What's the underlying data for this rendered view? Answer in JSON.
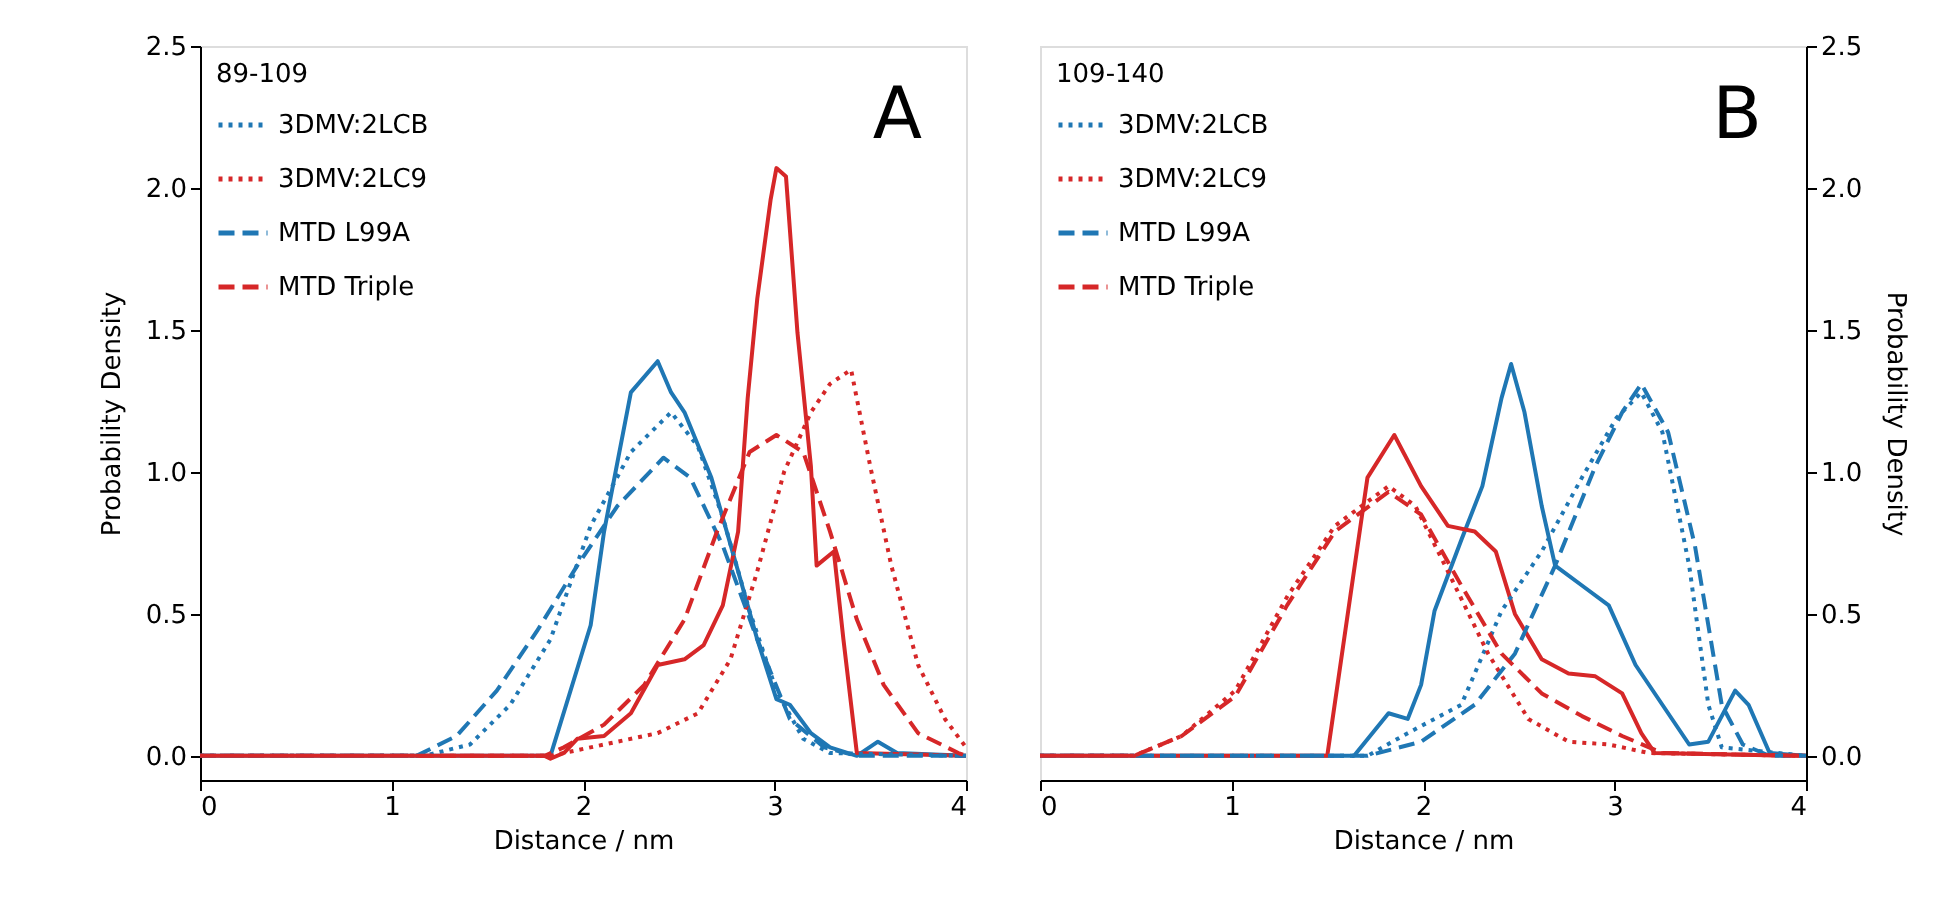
{
  "chart_data": [
    {
      "type": "line",
      "xlabel": "Distance  /  nm",
      "ylabel": "Probability Density",
      "legend_title": "89-109",
      "legend": "top left",
      "grid": false,
      "annotations": [
        "A"
      ],
      "xlim": [
        0,
        4
      ],
      "xticks": [
        0,
        1,
        2,
        3,
        4
      ],
      "ylim": [
        -0.085,
        2.5
      ],
      "yticks": [
        {
          "value": 0,
          "label": "0.0"
        },
        0.5,
        {
          "value": 1,
          "label": "1.0"
        },
        1.5,
        {
          "value": 2,
          "label": "2.0"
        },
        2.5
      ],
      "series": [
        {
          "name": "3DMV:2LCB",
          "color": "#1f77b4",
          "line_style": "dotted",
          "x": [
            0,
            1.17,
            1.41,
            1.62,
            1.83,
            2.04,
            2.25,
            2.46,
            2.6,
            2.73,
            2.87,
            3.01,
            3.15,
            3.29,
            4.0
          ],
          "values": [
            0,
            0,
            0.04,
            0.18,
            0.41,
            0.81,
            1.07,
            1.21,
            1.09,
            0.84,
            0.51,
            0.23,
            0.06,
            0.01,
            0
          ]
        },
        {
          "name": "3DMV:2LC9",
          "color": "#d62728",
          "line_style": "dotted",
          "x": [
            0,
            1.83,
            2.11,
            2.39,
            2.6,
            2.77,
            2.91,
            3.05,
            3.19,
            3.29,
            3.4,
            3.5,
            3.61,
            3.75,
            3.89,
            4.0
          ],
          "values": [
            0,
            0,
            0.04,
            0.08,
            0.15,
            0.34,
            0.65,
            1.0,
            1.21,
            1.31,
            1.36,
            1.02,
            0.67,
            0.32,
            0.13,
            0.03
          ]
        },
        {
          "name": "MTD L99A",
          "color": "#1f77b4",
          "line_style": "dashed",
          "x": [
            0,
            1.13,
            1.34,
            1.55,
            1.76,
            1.97,
            2.18,
            2.42,
            2.56,
            2.73,
            2.91,
            3.08,
            3.26,
            3.43,
            4.0
          ],
          "values": [
            0,
            0,
            0.07,
            0.23,
            0.44,
            0.67,
            0.88,
            1.05,
            0.98,
            0.74,
            0.41,
            0.13,
            0.03,
            0,
            0
          ]
        },
        {
          "name": "MTD Triple",
          "color": "#d62728",
          "line_style": "dashed",
          "x": [
            0,
            1.8,
            1.9,
            2.11,
            2.32,
            2.53,
            2.7,
            2.87,
            3.01,
            3.15,
            3.29,
            3.43,
            3.57,
            3.75,
            3.96,
            4.0
          ],
          "values": [
            0,
            0,
            0.03,
            0.11,
            0.25,
            0.48,
            0.79,
            1.07,
            1.13,
            1.07,
            0.79,
            0.48,
            0.25,
            0.08,
            0.01,
            0
          ]
        },
        {
          "color": "#1f77b4",
          "line_style": "solid",
          "x": [
            0,
            1.83,
            2.04,
            2.11,
            2.25,
            2.39,
            2.46,
            2.53,
            2.67,
            2.81,
            2.91,
            3.01,
            3.08,
            3.19,
            3.29,
            3.43,
            3.54,
            3.64,
            4.0
          ],
          "values": [
            0,
            0,
            0.46,
            0.79,
            1.28,
            1.39,
            1.28,
            1.21,
            0.98,
            0.65,
            0.41,
            0.2,
            0.18,
            0.08,
            0.03,
            0,
            0.05,
            0.01,
            0
          ]
        },
        {
          "color": "#d62728",
          "line_style": "solid",
          "x": [
            0,
            1.8,
            1.83,
            1.9,
            1.97,
            2.11,
            2.25,
            2.39,
            2.53,
            2.63,
            2.73,
            2.81,
            2.86,
            2.91,
            2.98,
            3.01,
            3.06,
            3.12,
            3.19,
            3.22,
            3.31,
            3.36,
            3.43,
            4.0
          ],
          "values": [
            0,
            0,
            -0.01,
            0.01,
            0.06,
            0.07,
            0.15,
            0.32,
            0.34,
            0.39,
            0.53,
            0.79,
            1.26,
            1.61,
            1.96,
            2.07,
            2.04,
            1.49,
            1.02,
            0.67,
            0.72,
            0.41,
            0.01,
            0
          ]
        }
      ]
    },
    {
      "type": "line",
      "xlabel": "Distance  /  nm",
      "y2label": "Probability Density",
      "legend_title": "109-140",
      "legend": "top left",
      "grid": false,
      "annotations": [
        "B"
      ],
      "xlim": [
        0,
        4
      ],
      "xticks": [
        0,
        1,
        2,
        3,
        4
      ],
      "y2lim": [
        -0.085,
        2.5
      ],
      "y2ticks": [
        {
          "value": 0,
          "label": "0.0"
        },
        0.5,
        {
          "value": 1,
          "label": "1.0"
        },
        1.5,
        {
          "value": 2,
          "label": "2.0"
        },
        2.5
      ],
      "series": [
        {
          "name": "3DMV:2LCB",
          "color": "#1f77b4",
          "line_style": "dotted",
          "axis": "y2",
          "x": [
            0,
            1.71,
            1.92,
            2.2,
            2.41,
            2.62,
            2.83,
            3.01,
            3.14,
            3.25,
            3.39,
            3.49,
            3.56,
            4.0
          ],
          "values": [
            0,
            0,
            0.08,
            0.18,
            0.51,
            0.72,
            0.98,
            1.19,
            1.28,
            1.14,
            0.67,
            0.18,
            0.03,
            0
          ]
        },
        {
          "name": "3DMV:2LC9",
          "color": "#d62728",
          "line_style": "dotted",
          "axis": "y2",
          "x": [
            0,
            0.49,
            0.74,
            1.02,
            1.29,
            1.54,
            1.82,
            1.96,
            2.13,
            2.34,
            2.55,
            2.76,
            2.97,
            3.18,
            4.0
          ],
          "values": [
            0,
            0,
            0.07,
            0.23,
            0.56,
            0.81,
            0.95,
            0.88,
            0.65,
            0.36,
            0.13,
            0.05,
            0.04,
            0.01,
            0
          ]
        },
        {
          "name": "MTD L99A",
          "color": "#1f77b4",
          "line_style": "dashed",
          "axis": "y2",
          "x": [
            0,
            1.71,
            1.99,
            2.27,
            2.48,
            2.69,
            2.9,
            3.04,
            3.14,
            3.28,
            3.42,
            3.56,
            3.67,
            3.81,
            4.0
          ],
          "values": [
            0,
            0,
            0.05,
            0.18,
            0.36,
            0.67,
            1.02,
            1.21,
            1.31,
            1.14,
            0.74,
            0.18,
            0.04,
            0,
            0
          ]
        },
        {
          "name": "MTD Triple",
          "color": "#d62728",
          "line_style": "dashed",
          "axis": "y2",
          "x": [
            0,
            0.49,
            0.74,
            1.02,
            1.29,
            1.54,
            1.82,
            1.99,
            2.2,
            2.41,
            2.62,
            2.83,
            3.04,
            3.25,
            4.0
          ],
          "values": [
            0,
            0,
            0.07,
            0.21,
            0.53,
            0.79,
            0.93,
            0.85,
            0.6,
            0.36,
            0.22,
            0.14,
            0.07,
            0.01,
            0
          ]
        },
        {
          "color": "#1f77b4",
          "line_style": "solid",
          "axis": "y2",
          "x": [
            0,
            1.64,
            1.82,
            1.92,
            1.99,
            2.06,
            2.2,
            2.31,
            2.41,
            2.46,
            2.53,
            2.62,
            2.69,
            2.83,
            2.97,
            3.11,
            3.25,
            3.39,
            3.49,
            3.63,
            3.7,
            3.81,
            4.0
          ],
          "values": [
            0,
            0,
            0.15,
            0.13,
            0.25,
            0.51,
            0.76,
            0.95,
            1.26,
            1.38,
            1.21,
            0.88,
            0.67,
            0.6,
            0.53,
            0.32,
            0.18,
            0.04,
            0.05,
            0.23,
            0.18,
            0.01,
            0
          ]
        },
        {
          "color": "#d62728",
          "line_style": "solid",
          "axis": "y2",
          "x": [
            0,
            1.5,
            1.71,
            1.85,
            1.99,
            2.13,
            2.27,
            2.38,
            2.48,
            2.62,
            2.76,
            2.9,
            3.04,
            3.14,
            3.21,
            4.0
          ],
          "values": [
            0,
            0,
            0.98,
            1.13,
            0.95,
            0.81,
            0.79,
            0.72,
            0.5,
            0.34,
            0.29,
            0.28,
            0.22,
            0.08,
            0.01,
            0
          ]
        }
      ]
    }
  ]
}
